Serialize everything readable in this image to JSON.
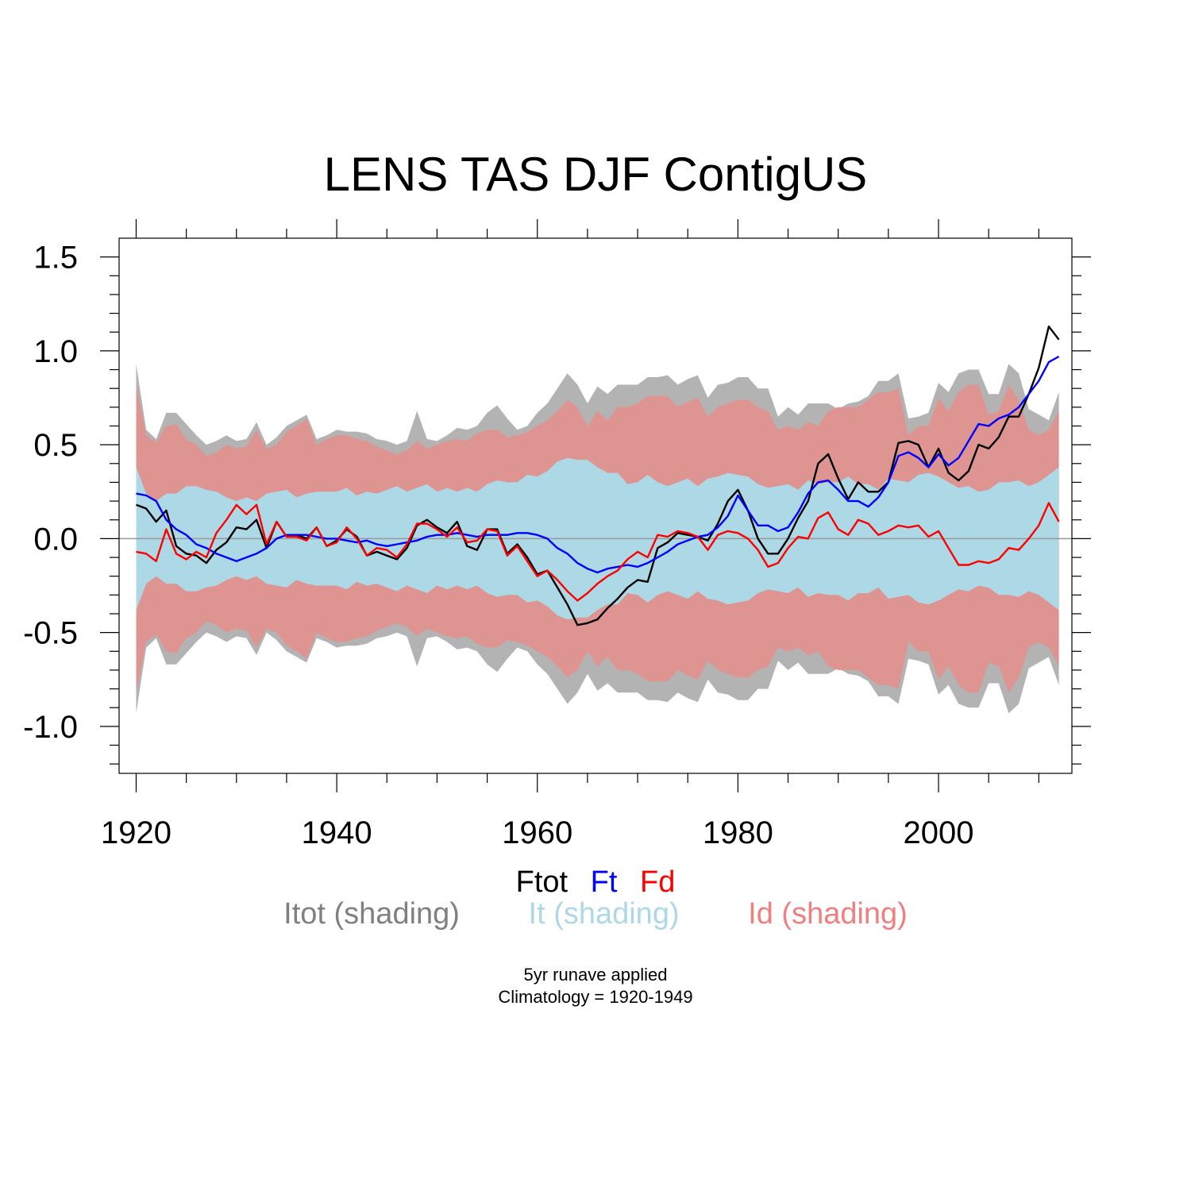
{
  "chart_data": {
    "type": "line",
    "title": "LENS TAS DJF ContigUS",
    "xlabel": "",
    "ylabel": "",
    "xlim": [
      1918.3,
      2013.3
    ],
    "ylim": [
      -1.25,
      1.6
    ],
    "x_ticks": [
      1920,
      1940,
      1960,
      1980,
      2000
    ],
    "y_ticks": [
      -1.0,
      -0.5,
      0.0,
      0.5,
      1.0,
      1.5
    ],
    "y_tick_labels": [
      "-1.0",
      "-0.5",
      "0.0",
      "0.5",
      "1.0",
      "1.5"
    ],
    "x": [
      1920,
      1921,
      1922,
      1923,
      1924,
      1925,
      1926,
      1927,
      1928,
      1929,
      1930,
      1931,
      1932,
      1933,
      1934,
      1935,
      1936,
      1937,
      1938,
      1939,
      1940,
      1941,
      1942,
      1943,
      1944,
      1945,
      1946,
      1947,
      1948,
      1949,
      1950,
      1951,
      1952,
      1953,
      1954,
      1955,
      1956,
      1957,
      1958,
      1959,
      1960,
      1961,
      1962,
      1963,
      1964,
      1965,
      1966,
      1967,
      1968,
      1969,
      1970,
      1971,
      1972,
      1973,
      1974,
      1975,
      1976,
      1977,
      1978,
      1979,
      1980,
      1981,
      1982,
      1983,
      1984,
      1985,
      1986,
      1987,
      1988,
      1989,
      1990,
      1991,
      1992,
      1993,
      1994,
      1995,
      1996,
      1997,
      1998,
      1999,
      2000,
      2001,
      2002,
      2003,
      2004,
      2005,
      2006,
      2007,
      2008,
      2009,
      2010,
      2011,
      2012
    ],
    "series": [
      {
        "name": "Ftot",
        "color": "#000000",
        "values": [
          0.18,
          0.16,
          0.09,
          0.15,
          -0.04,
          -0.08,
          -0.09,
          -0.13,
          -0.06,
          -0.02,
          0.06,
          0.05,
          0.1,
          -0.05,
          0.09,
          0.01,
          0.02,
          0.0,
          0.06,
          -0.04,
          -0.01,
          0.05,
          0.01,
          -0.09,
          -0.07,
          -0.09,
          -0.11,
          -0.05,
          0.07,
          0.1,
          0.06,
          0.03,
          0.09,
          -0.04,
          -0.06,
          0.05,
          0.05,
          -0.08,
          -0.03,
          -0.1,
          -0.19,
          -0.17,
          -0.26,
          -0.35,
          -0.46,
          -0.45,
          -0.43,
          -0.37,
          -0.32,
          -0.26,
          -0.22,
          -0.23,
          -0.05,
          -0.02,
          0.03,
          0.02,
          0.01,
          -0.01,
          0.08,
          0.2,
          0.26,
          0.15,
          0.0,
          -0.08,
          -0.08,
          0.0,
          0.11,
          0.2,
          0.4,
          0.45,
          0.32,
          0.21,
          0.3,
          0.25,
          0.25,
          0.3,
          0.51,
          0.52,
          0.5,
          0.38,
          0.48,
          0.35,
          0.31,
          0.36,
          0.5,
          0.48,
          0.54,
          0.65,
          0.65,
          0.77,
          0.91,
          1.13,
          1.06
        ]
      },
      {
        "name": "Ft",
        "color": "#0000ff",
        "values": [
          0.24,
          0.23,
          0.2,
          0.1,
          0.05,
          0.02,
          -0.03,
          -0.05,
          -0.08,
          -0.1,
          -0.12,
          -0.1,
          -0.08,
          -0.05,
          0.0,
          0.02,
          0.02,
          0.02,
          0.01,
          0.0,
          0.0,
          -0.01,
          -0.02,
          -0.01,
          -0.03,
          -0.04,
          -0.03,
          -0.02,
          -0.01,
          0.01,
          0.02,
          0.02,
          0.03,
          0.02,
          0.01,
          0.02,
          0.02,
          0.02,
          0.03,
          0.03,
          0.02,
          0.0,
          -0.05,
          -0.08,
          -0.13,
          -0.16,
          -0.18,
          -0.16,
          -0.15,
          -0.14,
          -0.15,
          -0.13,
          -0.1,
          -0.07,
          -0.03,
          -0.01,
          0.01,
          0.02,
          0.06,
          0.12,
          0.23,
          0.15,
          0.07,
          0.07,
          0.04,
          0.06,
          0.14,
          0.24,
          0.3,
          0.31,
          0.26,
          0.2,
          0.2,
          0.17,
          0.22,
          0.3,
          0.44,
          0.46,
          0.43,
          0.38,
          0.45,
          0.39,
          0.43,
          0.52,
          0.61,
          0.6,
          0.64,
          0.66,
          0.7,
          0.77,
          0.84,
          0.94,
          0.97
        ]
      },
      {
        "name": "Fd",
        "color": "#ff0000",
        "values": [
          -0.07,
          -0.08,
          -0.12,
          0.05,
          -0.08,
          -0.11,
          -0.07,
          -0.1,
          0.03,
          0.1,
          0.18,
          0.13,
          0.18,
          -0.03,
          0.09,
          0.01,
          0.01,
          -0.01,
          0.06,
          -0.04,
          -0.02,
          0.06,
          0.0,
          -0.09,
          -0.05,
          -0.06,
          -0.1,
          -0.03,
          0.08,
          0.08,
          0.05,
          0.01,
          0.06,
          -0.02,
          -0.01,
          0.05,
          0.04,
          -0.09,
          -0.04,
          -0.12,
          -0.2,
          -0.17,
          -0.22,
          -0.28,
          -0.33,
          -0.29,
          -0.24,
          -0.2,
          -0.17,
          -0.11,
          -0.07,
          -0.1,
          0.02,
          0.01,
          0.04,
          0.03,
          0.01,
          -0.06,
          0.02,
          0.04,
          0.03,
          0.0,
          -0.06,
          -0.15,
          -0.13,
          -0.05,
          0.01,
          0.0,
          0.11,
          0.14,
          0.05,
          0.02,
          0.1,
          0.08,
          0.02,
          0.04,
          0.07,
          0.06,
          0.07,
          0.01,
          0.04,
          -0.05,
          -0.14,
          -0.14,
          -0.12,
          -0.13,
          -0.11,
          -0.05,
          -0.06,
          0.0,
          0.07,
          0.19,
          0.09
        ]
      }
    ],
    "shading": [
      {
        "name": "Itot",
        "color": "#b3b3b3",
        "upper": [
          0.93,
          0.58,
          0.53,
          0.67,
          0.67,
          0.61,
          0.55,
          0.5,
          0.52,
          0.55,
          0.52,
          0.53,
          0.62,
          0.5,
          0.54,
          0.6,
          0.63,
          0.66,
          0.53,
          0.55,
          0.58,
          0.57,
          0.57,
          0.56,
          0.53,
          0.52,
          0.5,
          0.52,
          0.68,
          0.53,
          0.52,
          0.55,
          0.59,
          0.58,
          0.6,
          0.67,
          0.71,
          0.64,
          0.58,
          0.6,
          0.67,
          0.72,
          0.8,
          0.88,
          0.82,
          0.72,
          0.81,
          0.77,
          0.82,
          0.82,
          0.82,
          0.86,
          0.86,
          0.87,
          0.82,
          0.85,
          0.87,
          0.75,
          0.82,
          0.83,
          0.86,
          0.86,
          0.8,
          0.8,
          0.65,
          0.7,
          0.66,
          0.72,
          0.72,
          0.72,
          0.69,
          0.72,
          0.73,
          0.76,
          0.84,
          0.84,
          0.88,
          0.64,
          0.65,
          0.67,
          0.83,
          0.78,
          0.88,
          0.9,
          0.9,
          0.77,
          0.77,
          0.93,
          0.88,
          0.69,
          0.66,
          0.63,
          0.78
        ],
        "lower": [
          -0.93,
          -0.58,
          -0.53,
          -0.67,
          -0.67,
          -0.61,
          -0.55,
          -0.5,
          -0.52,
          -0.55,
          -0.52,
          -0.53,
          -0.62,
          -0.5,
          -0.54,
          -0.6,
          -0.63,
          -0.66,
          -0.53,
          -0.55,
          -0.58,
          -0.57,
          -0.57,
          -0.56,
          -0.53,
          -0.52,
          -0.5,
          -0.52,
          -0.68,
          -0.53,
          -0.52,
          -0.55,
          -0.59,
          -0.58,
          -0.6,
          -0.67,
          -0.71,
          -0.64,
          -0.58,
          -0.6,
          -0.67,
          -0.72,
          -0.8,
          -0.88,
          -0.82,
          -0.72,
          -0.81,
          -0.77,
          -0.82,
          -0.82,
          -0.82,
          -0.86,
          -0.86,
          -0.87,
          -0.82,
          -0.85,
          -0.87,
          -0.75,
          -0.82,
          -0.83,
          -0.86,
          -0.86,
          -0.8,
          -0.8,
          -0.65,
          -0.7,
          -0.66,
          -0.72,
          -0.72,
          -0.72,
          -0.69,
          -0.72,
          -0.73,
          -0.76,
          -0.84,
          -0.84,
          -0.88,
          -0.64,
          -0.65,
          -0.67,
          -0.83,
          -0.78,
          -0.88,
          -0.9,
          -0.9,
          -0.77,
          -0.77,
          -0.93,
          -0.88,
          -0.69,
          -0.66,
          -0.63,
          -0.78
        ]
      },
      {
        "name": "Id",
        "color": "#de9591",
        "upper": [
          0.82,
          0.55,
          0.51,
          0.6,
          0.61,
          0.53,
          0.5,
          0.44,
          0.46,
          0.5,
          0.48,
          0.49,
          0.58,
          0.48,
          0.5,
          0.57,
          0.6,
          0.64,
          0.5,
          0.53,
          0.55,
          0.55,
          0.53,
          0.52,
          0.49,
          0.47,
          0.45,
          0.47,
          0.52,
          0.48,
          0.5,
          0.52,
          0.53,
          0.52,
          0.56,
          0.58,
          0.58,
          0.54,
          0.55,
          0.57,
          0.6,
          0.63,
          0.68,
          0.74,
          0.7,
          0.6,
          0.68,
          0.63,
          0.7,
          0.7,
          0.72,
          0.76,
          0.76,
          0.76,
          0.7,
          0.73,
          0.75,
          0.65,
          0.7,
          0.72,
          0.74,
          0.74,
          0.7,
          0.68,
          0.58,
          0.6,
          0.58,
          0.62,
          0.6,
          0.68,
          0.7,
          0.7,
          0.7,
          0.74,
          0.78,
          0.78,
          0.8,
          0.55,
          0.6,
          0.6,
          0.75,
          0.68,
          0.78,
          0.82,
          0.82,
          0.66,
          0.68,
          0.82,
          0.74,
          0.58,
          0.55,
          0.58,
          0.68
        ],
        "lower": [
          -0.82,
          -0.55,
          -0.51,
          -0.6,
          -0.61,
          -0.53,
          -0.5,
          -0.44,
          -0.46,
          -0.5,
          -0.48,
          -0.49,
          -0.58,
          -0.48,
          -0.5,
          -0.57,
          -0.6,
          -0.64,
          -0.5,
          -0.53,
          -0.55,
          -0.55,
          -0.53,
          -0.52,
          -0.49,
          -0.47,
          -0.45,
          -0.47,
          -0.52,
          -0.48,
          -0.5,
          -0.52,
          -0.53,
          -0.52,
          -0.56,
          -0.58,
          -0.58,
          -0.54,
          -0.55,
          -0.57,
          -0.6,
          -0.63,
          -0.68,
          -0.74,
          -0.7,
          -0.6,
          -0.68,
          -0.63,
          -0.7,
          -0.7,
          -0.72,
          -0.76,
          -0.76,
          -0.76,
          -0.7,
          -0.73,
          -0.75,
          -0.65,
          -0.7,
          -0.72,
          -0.74,
          -0.74,
          -0.7,
          -0.68,
          -0.58,
          -0.6,
          -0.58,
          -0.62,
          -0.6,
          -0.68,
          -0.7,
          -0.7,
          -0.7,
          -0.74,
          -0.78,
          -0.78,
          -0.8,
          -0.55,
          -0.6,
          -0.6,
          -0.75,
          -0.68,
          -0.78,
          -0.82,
          -0.82,
          -0.66,
          -0.68,
          -0.82,
          -0.74,
          -0.58,
          -0.55,
          -0.58,
          -0.68
        ]
      },
      {
        "name": "It",
        "color": "#add8e6",
        "upper": [
          0.38,
          0.24,
          0.2,
          0.24,
          0.24,
          0.28,
          0.28,
          0.26,
          0.25,
          0.22,
          0.2,
          0.22,
          0.2,
          0.24,
          0.25,
          0.26,
          0.22,
          0.24,
          0.25,
          0.25,
          0.25,
          0.27,
          0.23,
          0.25,
          0.24,
          0.26,
          0.28,
          0.25,
          0.27,
          0.29,
          0.25,
          0.27,
          0.25,
          0.27,
          0.25,
          0.29,
          0.31,
          0.3,
          0.3,
          0.34,
          0.33,
          0.36,
          0.41,
          0.43,
          0.42,
          0.42,
          0.38,
          0.35,
          0.35,
          0.29,
          0.3,
          0.34,
          0.3,
          0.28,
          0.3,
          0.32,
          0.28,
          0.32,
          0.33,
          0.35,
          0.34,
          0.33,
          0.29,
          0.27,
          0.28,
          0.29,
          0.26,
          0.31,
          0.29,
          0.3,
          0.3,
          0.33,
          0.29,
          0.29,
          0.26,
          0.32,
          0.31,
          0.3,
          0.34,
          0.35,
          0.33,
          0.3,
          0.27,
          0.28,
          0.25,
          0.26,
          0.3,
          0.3,
          0.31,
          0.28,
          0.3,
          0.34,
          0.38
        ],
        "lower": [
          -0.38,
          -0.24,
          -0.2,
          -0.24,
          -0.24,
          -0.28,
          -0.28,
          -0.26,
          -0.25,
          -0.22,
          -0.2,
          -0.22,
          -0.2,
          -0.24,
          -0.25,
          -0.26,
          -0.22,
          -0.24,
          -0.25,
          -0.25,
          -0.25,
          -0.27,
          -0.23,
          -0.25,
          -0.24,
          -0.26,
          -0.28,
          -0.25,
          -0.27,
          -0.29,
          -0.25,
          -0.27,
          -0.25,
          -0.27,
          -0.25,
          -0.29,
          -0.31,
          -0.3,
          -0.3,
          -0.34,
          -0.33,
          -0.36,
          -0.41,
          -0.43,
          -0.42,
          -0.42,
          -0.38,
          -0.35,
          -0.35,
          -0.29,
          -0.3,
          -0.34,
          -0.3,
          -0.28,
          -0.3,
          -0.32,
          -0.28,
          -0.32,
          -0.33,
          -0.35,
          -0.34,
          -0.33,
          -0.29,
          -0.27,
          -0.28,
          -0.29,
          -0.26,
          -0.31,
          -0.29,
          -0.3,
          -0.3,
          -0.33,
          -0.29,
          -0.29,
          -0.26,
          -0.32,
          -0.31,
          -0.3,
          -0.34,
          -0.35,
          -0.33,
          -0.3,
          -0.27,
          -0.28,
          -0.25,
          -0.26,
          -0.3,
          -0.3,
          -0.31,
          -0.28,
          -0.3,
          -0.34,
          -0.38
        ]
      }
    ],
    "zero_line": true,
    "grid": false
  },
  "legend": {
    "lines": [
      {
        "label": "Ftot",
        "color": "#000000"
      },
      {
        "label": "Ft",
        "color": "#0000ff"
      },
      {
        "label": "Fd",
        "color": "#ff0000"
      }
    ],
    "shading": [
      {
        "label": "Itot (shading)",
        "color": "#808080"
      },
      {
        "label": "It (shading)",
        "color": "#add8e6"
      },
      {
        "label": "Id (shading)",
        "color": "#f08080"
      }
    ]
  },
  "footnote": {
    "line1": "5yr runave applied",
    "line2": "Climatology = 1920-1949"
  }
}
